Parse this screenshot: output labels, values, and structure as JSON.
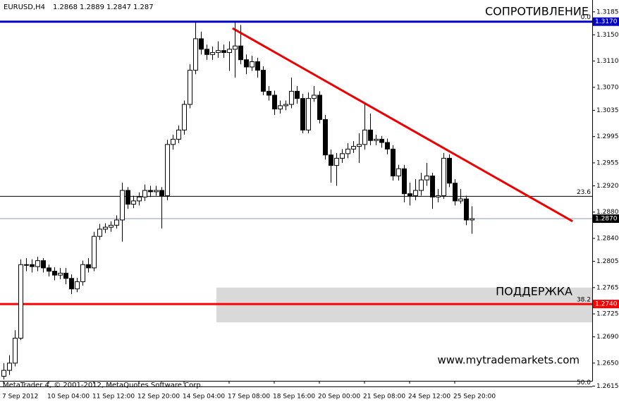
{
  "chart_data": {
    "type": "candlestick",
    "symbol": "EURUSD,H4",
    "annotations": {
      "resistance": "СОПРОТИВЛЕНИЕ",
      "support": "ПОДДЕРЖКА",
      "watermark": "www.mytrademarkets.com",
      "copyright": "MetaTrader 4, © 2001-2012, MetaQuotes Software Corp."
    },
    "open": [
      1.263,
      1.2639,
      1.265,
      1.2688,
      1.28,
      1.28,
      1.2797,
      1.2806,
      1.2795,
      1.279,
      1.2784,
      1.2787,
      1.2779,
      1.2763,
      1.2774,
      1.28,
      1.2795,
      1.2843,
      1.2854,
      1.2857,
      1.286,
      1.2868,
      1.2913,
      1.2892,
      1.2897,
      1.2903,
      1.2913,
      1.2911,
      1.2913,
      1.2905,
      1.2983,
      1.2991,
      1.3005,
      1.3044,
      1.3096,
      1.3144,
      1.3128,
      1.312,
      1.3123,
      1.3126,
      1.3123,
      1.3128,
      1.3133,
      1.3112,
      1.3101,
      1.3109,
      1.3096,
      1.3064,
      1.3058,
      1.3037,
      1.3042,
      1.3044,
      1.3064,
      1.3053,
      1.3005,
      1.3053,
      1.3058,
      1.3021,
      1.2967,
      1.2951,
      1.2962,
      1.2969,
      1.2976,
      1.298,
      1.2983,
      1.3005,
      1.2989,
      1.2991,
      1.2986,
      1.2976,
      1.2935,
      1.2946,
      1.2908,
      1.2905,
      1.2913,
      1.2929,
      1.2935,
      1.2903,
      1.2905,
      1.2962,
      1.2924,
      1.2897,
      1.29,
      1.2868
    ],
    "high": [
      1.265,
      1.2662,
      1.27,
      1.2808,
      1.281,
      1.2808,
      1.2812,
      1.281,
      1.28,
      1.2796,
      1.2795,
      1.2795,
      1.2785,
      1.278,
      1.2806,
      1.281,
      1.285,
      1.2862,
      1.2863,
      1.2866,
      1.2875,
      1.2925,
      1.2918,
      1.2905,
      1.291,
      1.2922,
      1.292,
      1.292,
      1.2918,
      1.299,
      1.2998,
      1.3012,
      1.305,
      1.3105,
      1.317,
      1.3155,
      1.3135,
      1.3132,
      1.314,
      1.3135,
      1.314,
      1.317,
      1.3165,
      1.312,
      1.3118,
      1.3115,
      1.3102,
      1.3072,
      1.3065,
      1.305,
      1.305,
      1.3085,
      1.3072,
      1.306,
      1.3062,
      1.3072,
      1.3064,
      1.3028,
      1.2975,
      1.297,
      1.2976,
      1.2985,
      1.2988,
      1.3,
      1.3045,
      1.303,
      1.2998,
      1.2996,
      1.2992,
      1.2982,
      1.2952,
      1.2952,
      1.2925,
      1.293,
      1.294,
      1.2955,
      1.294,
      1.2915,
      1.297,
      1.2968,
      1.293,
      1.2915,
      1.2905,
      1.2889
    ],
    "low": [
      1.2625,
      1.2632,
      1.2645,
      1.2685,
      1.279,
      1.2788,
      1.279,
      1.2788,
      1.2782,
      1.2776,
      1.2778,
      1.277,
      1.2755,
      1.2758,
      1.2768,
      1.2788,
      1.279,
      1.2838,
      1.2848,
      1.285,
      1.2855,
      1.2835,
      1.2885,
      1.2886,
      1.289,
      1.2897,
      1.2903,
      1.2905,
      1.2855,
      1.2898,
      1.2975,
      1.2985,
      1.2998,
      1.3038,
      1.309,
      1.312,
      1.3112,
      1.3112,
      1.3115,
      1.3115,
      1.3095,
      1.3085,
      1.3105,
      1.309,
      1.3095,
      1.3085,
      1.3058,
      1.305,
      1.3028,
      1.303,
      1.3035,
      1.3038,
      1.3045,
      1.3,
      1.3,
      1.3048,
      1.3015,
      1.296,
      1.2925,
      1.292,
      1.2955,
      1.2962,
      1.297,
      1.2955,
      1.2975,
      1.2982,
      1.2982,
      1.2978,
      1.2968,
      1.2928,
      1.2928,
      1.2895,
      1.289,
      1.2898,
      1.2905,
      1.292,
      1.2885,
      1.2895,
      1.29,
      1.2918,
      1.289,
      1.2893,
      1.286,
      1.2847
    ],
    "close": [
      1.2639,
      1.265,
      1.2688,
      1.28,
      1.28,
      1.2797,
      1.2806,
      1.2795,
      1.279,
      1.2784,
      1.2787,
      1.2779,
      1.2763,
      1.2774,
      1.28,
      1.2795,
      1.2843,
      1.2854,
      1.2857,
      1.286,
      1.2868,
      1.2913,
      1.2892,
      1.2897,
      1.2903,
      1.2913,
      1.2911,
      1.2913,
      1.2905,
      1.2983,
      1.2991,
      1.3005,
      1.3044,
      1.3096,
      1.3144,
      1.3128,
      1.312,
      1.3123,
      1.3126,
      1.3123,
      1.3128,
      1.3133,
      1.3112,
      1.3101,
      1.3109,
      1.3096,
      1.3064,
      1.3058,
      1.3037,
      1.3042,
      1.3044,
      1.3064,
      1.3053,
      1.3005,
      1.3053,
      1.3058,
      1.3021,
      1.2967,
      1.2951,
      1.2962,
      1.2969,
      1.2976,
      1.298,
      1.2983,
      1.3005,
      1.2989,
      1.2991,
      1.2986,
      1.2976,
      1.2935,
      1.2946,
      1.2908,
      1.2905,
      1.2913,
      1.2929,
      1.2935,
      1.2903,
      1.2905,
      1.2962,
      1.2924,
      1.2897,
      1.29,
      1.2868,
      1.287
    ],
    "bull_color": "#ffffff",
    "bear_color": "#000000",
    "edge_color": "#000000",
    "xlim": [
      -0.625,
      104.375
    ],
    "ylim": [
      1.2623,
      1.3203
    ],
    "xticks": [
      {
        "value": 0,
        "label": "7 Sep 2012"
      },
      {
        "value": 8,
        "label": "10 Sep 04:00"
      },
      {
        "value": 16,
        "label": "11 Sep 12:00"
      },
      {
        "value": 24,
        "label": "12 Sep 20:00"
      },
      {
        "value": 32,
        "label": "14 Sep 04:00"
      },
      {
        "value": 40,
        "label": "17 Sep 08:00"
      },
      {
        "value": 48,
        "label": "18 Sep 16:00"
      },
      {
        "value": 56,
        "label": "20 Sep 00:00"
      },
      {
        "value": 64,
        "label": "21 Sep 08:00"
      },
      {
        "value": 72,
        "label": "24 Sep 12:00"
      },
      {
        "value": 80,
        "label": "25 Sep 20:00"
      }
    ],
    "yticks": [
      1.3185,
      {
        "value": 1.315,
        "label": "1.3150"
      },
      {
        "value": 1.311,
        "label": "1.3110"
      },
      {
        "value": 1.307,
        "label": "1.3070"
      },
      1.3035,
      1.2995,
      1.2955,
      {
        "value": 1.292,
        "label": "1.2920"
      },
      {
        "value": 1.288,
        "label": "1.2880"
      },
      {
        "value": 1.284,
        "label": "1.2840"
      },
      1.2805,
      1.2765,
      1.2725,
      {
        "value": 1.269,
        "label": "1.2690"
      },
      {
        "value": 1.265,
        "label": "1.2650"
      },
      1.2615
    ],
    "hlines": [
      {
        "value": 1.317,
        "label": "1.3170",
        "color": "#0000cc"
      },
      {
        "value": 1.287,
        "label": "1.2870",
        "color": "#000000"
      },
      {
        "value": 1.274,
        "label": "1.2740",
        "color": "#ff0000"
      }
    ],
    "fib_levels": [
      {
        "value": 1.317,
        "label": "0.0"
      },
      {
        "value": 1.2904,
        "label": "23.6"
      },
      {
        "value": 1.274,
        "label": "38.2"
      },
      {
        "value": 1.2614,
        "label": "50.0"
      }
    ],
    "trendline": {
      "x": [
        40.6,
        100.9
      ],
      "y": [
        1.316,
        1.2866
      ],
      "color": "#ee0000"
    },
    "support_zone": {
      "x": [
        37.75,
        104.375
      ],
      "y": [
        1.2712,
        1.2765
      ],
      "color": "#d9d9d9"
    }
  }
}
